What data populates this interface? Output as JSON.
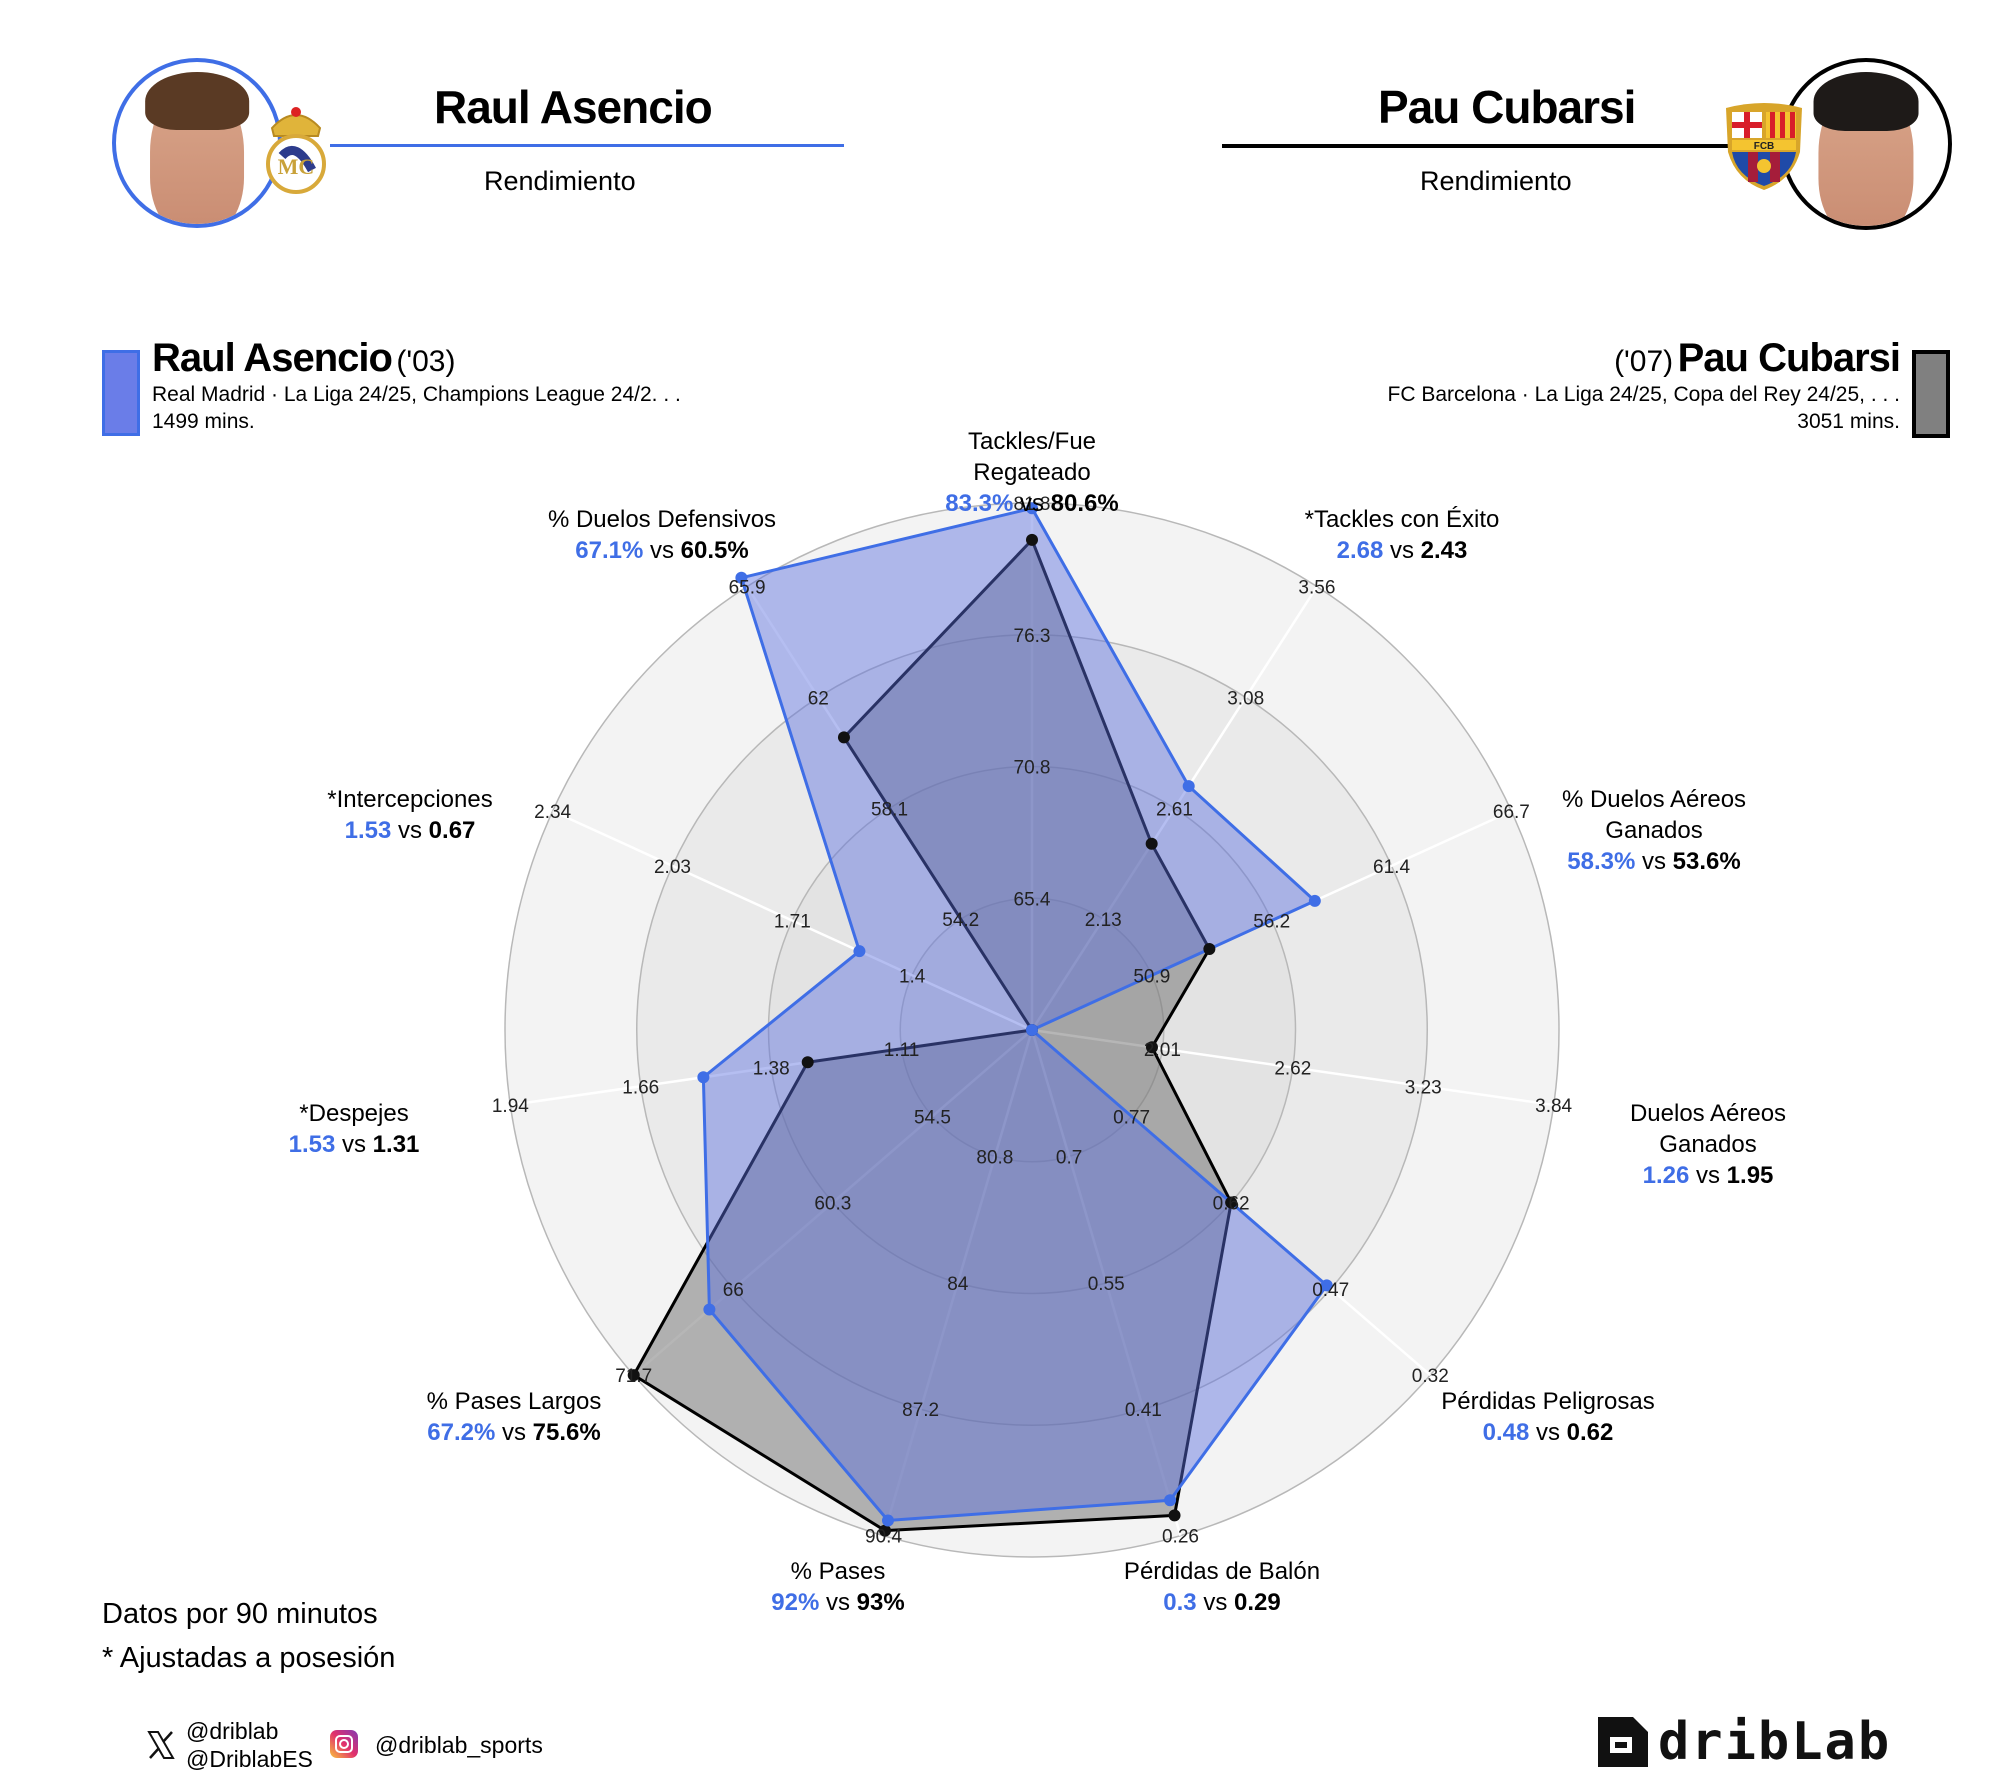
{
  "header": {
    "player1": {
      "name": "Raul Asencio",
      "subtitle": "Rendimiento",
      "club": "Real Madrid",
      "accent": "#3f6ee6"
    },
    "player2": {
      "name": "Pau Cubarsi",
      "subtitle": "Rendimiento",
      "club": "FC Barcelona",
      "accent": "#000000"
    }
  },
  "legend": {
    "player1": {
      "name": "Raul Asencio",
      "year": "('03)",
      "competitions": "Real Madrid · La Liga 24/25, Champions League 24/2. . .",
      "minutes": "1499 mins.",
      "color": "#6a7de8"
    },
    "player2": {
      "name": "Pau Cubarsi",
      "year": "('07)",
      "competitions": "FC Barcelona · La Liga 24/25, Copa del Rey 24/25, . . .",
      "minutes": "3051 mins.",
      "color": "#808080"
    }
  },
  "chart_data": {
    "type": "radar",
    "title": "Raul Asencio vs Pau Cubarsi - Rendimiento",
    "series": [
      {
        "name": "Raul Asencio",
        "color": "#3f6ee6",
        "values": [
          83.3,
          2.68,
          58.3,
          1.26,
          0.48,
          0.3,
          92,
          67.2,
          1.53,
          1.53,
          67.1
        ]
      },
      {
        "name": "Pau Cubarsi",
        "color": "#000000",
        "values": [
          80.6,
          2.43,
          53.6,
          1.95,
          0.62,
          0.29,
          93,
          75.6,
          1.31,
          0.67,
          60.5
        ]
      }
    ],
    "axes": [
      {
        "label": "Tackles/Fue Regateado",
        "p1": "83.3%",
        "p2": "80.6%",
        "ticks": [
          "65.4",
          "70.8",
          "76.3",
          "81.8"
        ],
        "r1": 0.99,
        "r2": 0.93
      },
      {
        "label": "*Tackles con Éxito",
        "p1": "2.68",
        "p2": "2.43",
        "ticks": [
          "2.13",
          "2.61",
          "3.08",
          "3.56"
        ],
        "r1": 0.55,
        "r2": 0.42
      },
      {
        "label": "% Duelos Aéreos Ganados",
        "p1": "58.3%",
        "p2": "53.6%",
        "ticks": [
          "50.9",
          "56.2",
          "61.4",
          "66.7"
        ],
        "r1": 0.59,
        "r2": 0.37
      },
      {
        "label": "Duelos Aéreos Ganados",
        "p1": "1.26",
        "p2": "1.95",
        "ticks": [
          "2.01",
          "2.62",
          "3.23",
          "3.84"
        ],
        "r1": 0.0,
        "r2": 0.23
      },
      {
        "label": "Pérdidas Peligrosas",
        "p1": "0.48",
        "p2": "0.62",
        "ticks": [
          "0.77",
          "0.62",
          "0.47",
          "0.32"
        ],
        "r1": 0.74,
        "r2": 0.5
      },
      {
        "label": "Pérdidas de Balón",
        "p1": "0.3",
        "p2": "0.29",
        "ticks": [
          "0.7",
          "0.55",
          "0.41",
          "0.26"
        ],
        "r1": 0.93,
        "r2": 0.96
      },
      {
        "label": "% Pases",
        "p1": "92%",
        "p2": "93%",
        "ticks": [
          "80.8",
          "84",
          "87.2",
          "90.4"
        ],
        "r1": 0.97,
        "r2": 0.99
      },
      {
        "label": "% Pases Largos",
        "p1": "67.2%",
        "p2": "75.6%",
        "ticks": [
          "54.5",
          "60.3",
          "66",
          "71.7"
        ],
        "r1": 0.81,
        "r2": 1.0
      },
      {
        "label": "*Despejes",
        "p1": "1.53",
        "p2": "1.31",
        "ticks": [
          "1.11",
          "1.38",
          "1.66",
          "1.94"
        ],
        "r1": 0.63,
        "r2": 0.43
      },
      {
        "label": "*Intercepciones",
        "p1": "1.53",
        "p2": "0.67",
        "ticks": [
          "1.4",
          "1.71",
          "2.03",
          "2.34"
        ],
        "r1": 0.36,
        "r2": 0.0
      },
      {
        "label": "% Duelos Defensivos",
        "p1": "67.1%",
        "p2": "60.5%",
        "ticks": [
          "54.2",
          "58.1",
          "62",
          "65.9"
        ],
        "r1": 1.02,
        "r2": 0.66
      }
    ],
    "rings": 4,
    "legend_position": "top"
  },
  "footer": {
    "note1": "Datos por 90 minutos",
    "note2": "* Ajustadas a posesión",
    "twitter_handle1": "@driblab",
    "twitter_handle2": "@DriblabES",
    "instagram_handle": "@driblab_sports",
    "brand": "dribLab"
  }
}
